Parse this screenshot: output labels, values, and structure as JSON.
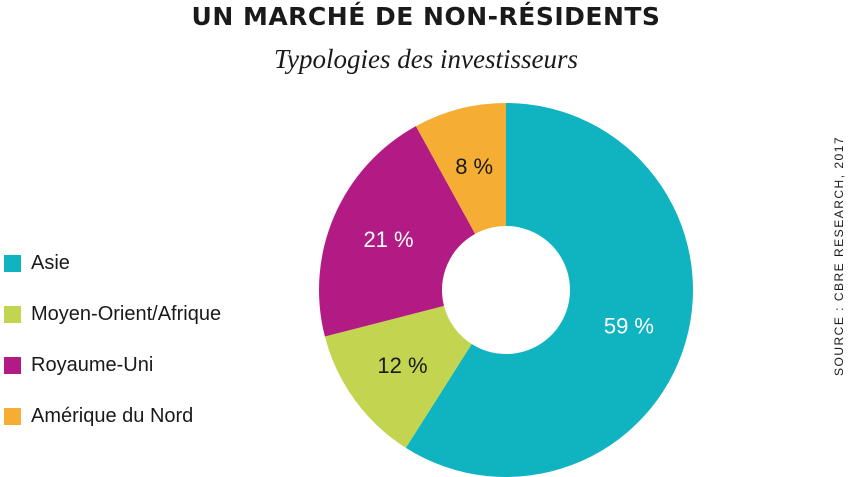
{
  "chart_data": {
    "type": "pie",
    "title": "UN MARCHÉ DE NON-RÉSIDENTS",
    "subtitle": "Typologies des investisseurs",
    "categories": [
      "Asie",
      "Moyen-Orient/Afrique",
      "Royaume-Uni",
      "Amérique du Nord"
    ],
    "values": [
      59,
      12,
      21,
      8
    ],
    "labels": [
      "59 %",
      "12 %",
      "21 %",
      "8 %"
    ],
    "colors": [
      "#10b3c0",
      "#c3d550",
      "#b11b83",
      "#f5ae33"
    ],
    "label_colors": [
      "#ffffff",
      "#1a1a1a",
      "#ffffff",
      "#1a1a1a"
    ],
    "donut": true,
    "start": "top, clockwise",
    "legend_position": "left",
    "source": "SOURCE : CBRE RESEARCH, 2017"
  }
}
